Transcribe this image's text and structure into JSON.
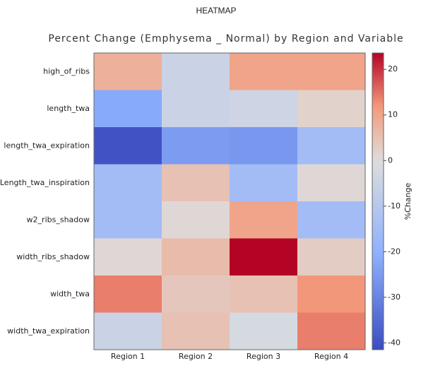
{
  "chart_data": {
    "type": "heatmap",
    "title": "HEATMAP",
    "subtitle": "Percent Change (Emphysema _ Normal) by Region and Variable",
    "x_categories": [
      "Region 1",
      "Region 2",
      "Region 3",
      "Region 4"
    ],
    "y_categories": [
      "high_of_ribs",
      "length_twa",
      "length_twa_expiration",
      "Length_twa_inspiration",
      "w2_ribs_shadow",
      "width_ribs_shadow",
      "width_twa",
      "width_twa_expiration"
    ],
    "values": [
      [
        8,
        -5,
        10,
        10
      ],
      [
        -22,
        -5,
        -4,
        2
      ],
      [
        -40,
        -25,
        -26,
        -15
      ],
      [
        -15,
        5,
        -15,
        1
      ],
      [
        -15,
        1,
        10,
        -15
      ],
      [
        1,
        6,
        24,
        3
      ],
      [
        14,
        4,
        5,
        12
      ],
      [
        -5,
        5,
        -2,
        14
      ]
    ],
    "colormap": [
      "#3b4cc0",
      "#8db0fe",
      "#dddddd",
      "#f49a7b",
      "#b40426"
    ],
    "clim": [
      -41.5,
      23.6
    ],
    "cticks": [
      -40,
      -30,
      -20,
      -10,
      0,
      10,
      20
    ],
    "colorbar_label": "%Change"
  }
}
